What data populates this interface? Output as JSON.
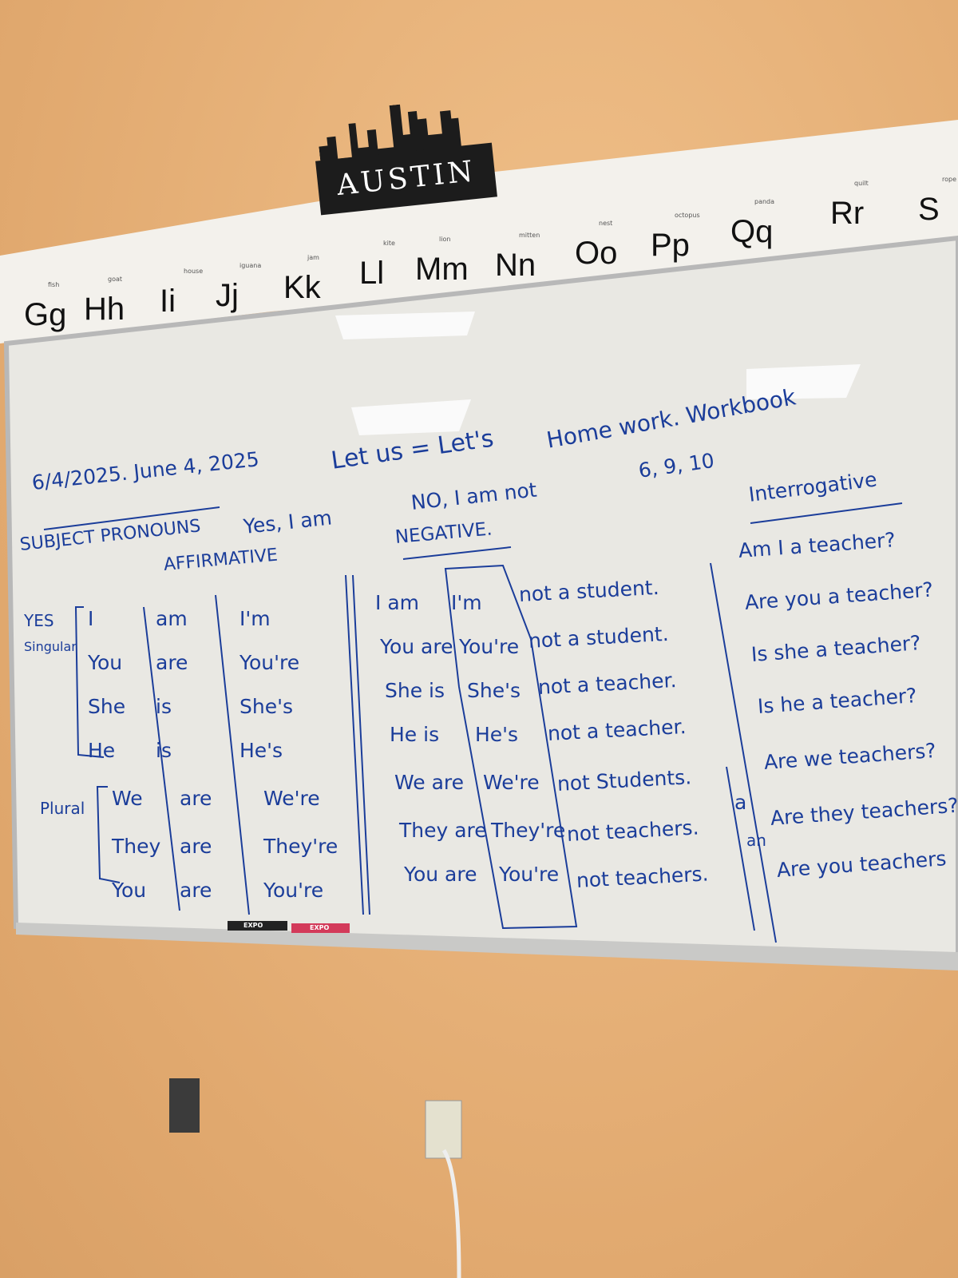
{
  "sign": {
    "text": "AUSTIN"
  },
  "alphabet": {
    "letters": [
      "Gg",
      "Hh",
      "Ii",
      "Jj",
      "Kk",
      "Ll",
      "Mm",
      "Nn",
      "Oo",
      "Pp",
      "Qq",
      "Rr",
      "S"
    ],
    "pictures": [
      "fish",
      "goat",
      "house",
      "iguana",
      "jam",
      "kite",
      "lion",
      "mitten",
      "nest",
      "octopus",
      "panda",
      "quilt",
      "rope"
    ]
  },
  "board": {
    "date": "6/4/2025. June 4, 2025",
    "lets": "Let us = Let's",
    "homework": "Home work. Workbook",
    "homework_pages": "6, 9, 10",
    "subject_pronouns": "SUBJECT PRONOUNS",
    "yes_i_am": "Yes, I am",
    "affirmative": "AFFIRMATIVE",
    "no_i_am_not": "NO, I am not",
    "negative": "NEGATIVE.",
    "interrogative": "Interrogative",
    "yes": "YES",
    "singular": "Singular",
    "plural": "Plural",
    "affirmative_rows": [
      {
        "pronoun": "I",
        "verb": "am",
        "contraction": "I'm"
      },
      {
        "pronoun": "You",
        "verb": "are",
        "contraction": "You're"
      },
      {
        "pronoun": "She",
        "verb": "is",
        "contraction": "She's"
      },
      {
        "pronoun": "He",
        "verb": "is",
        "contraction": "He's"
      },
      {
        "pronoun": "We",
        "verb": "are",
        "contraction": "We're"
      },
      {
        "pronoun": "They",
        "verb": "are",
        "contraction": "They're"
      },
      {
        "pronoun": "You",
        "verb": "are",
        "contraction": "You're"
      }
    ],
    "negative_rows": [
      {
        "full": "I am",
        "contraction": "I'm",
        "rest": "not a student."
      },
      {
        "full": "You are",
        "contraction": "You're",
        "rest": "not a student."
      },
      {
        "full": "She is",
        "contraction": "She's",
        "rest": "not a teacher."
      },
      {
        "full": "He is",
        "contraction": "He's",
        "rest": "not a teacher."
      },
      {
        "full": "We are",
        "contraction": "We're",
        "rest": "not Students."
      },
      {
        "full": "They are",
        "contraction": "They're",
        "rest": "not teachers."
      },
      {
        "full": "You are",
        "contraction": "You're",
        "rest": "not teachers."
      }
    ],
    "questions": [
      "Am I a teacher?",
      "Are you a teacher?",
      "Is she a teacher?",
      "Is he a teacher?",
      "Are we teachers?",
      "Are they teachers?",
      "Are you teachers"
    ],
    "margin_marks": [
      "a",
      "an"
    ]
  },
  "markers": [
    "EXPO",
    "EXPO"
  ]
}
